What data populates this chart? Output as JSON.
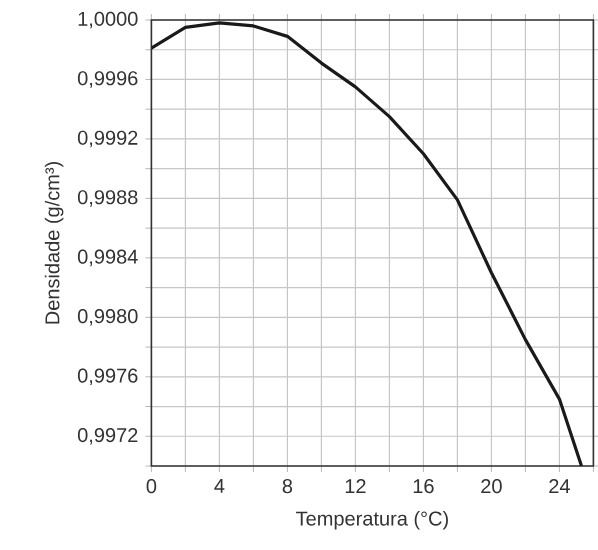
{
  "chart_data": {
    "type": "line",
    "xlabel": "Temperatura (°C)",
    "ylabel": "Densidade (g/cm³)",
    "x": [
      0,
      2,
      4,
      6,
      8,
      10,
      12,
      14,
      16,
      18,
      20,
      22,
      24,
      25.3
    ],
    "series": [
      {
        "color": "#1a1a1a",
        "values": [
          0.99981,
          0.99995,
          0.99998,
          0.99996,
          0.99989,
          0.99971,
          0.99955,
          0.99935,
          0.9991,
          0.99879,
          0.9983,
          0.99785,
          0.99745,
          0.997
        ]
      }
    ],
    "xlim": [
      0,
      26
    ],
    "ylim": [
      0.997,
      1.0
    ],
    "xticks": [
      0,
      {
        "value": 2,
        "label": null
      },
      4,
      {
        "value": 6,
        "label": null
      },
      8,
      {
        "value": 10,
        "label": null
      },
      12,
      {
        "value": 14,
        "label": null
      },
      16,
      {
        "value": 18,
        "label": null
      },
      20,
      {
        "value": 22,
        "label": null
      },
      24,
      {
        "value": 26,
        "label": null
      }
    ],
    "yticks": [
      {
        "value": 0.997,
        "label": null
      },
      {
        "value": 0.9972,
        "label": "0,9972"
      },
      {
        "value": 0.9974,
        "label": null
      },
      {
        "value": 0.9976,
        "label": "0,9976"
      },
      {
        "value": 0.9978,
        "label": null
      },
      {
        "value": 0.998,
        "label": "0,9980"
      },
      {
        "value": 0.9982,
        "label": null
      },
      {
        "value": 0.9984,
        "label": "0,9984"
      },
      {
        "value": 0.9986,
        "label": null
      },
      {
        "value": 0.9988,
        "label": "0,9988"
      },
      {
        "value": 0.999,
        "label": null
      },
      {
        "value": 0.9992,
        "label": "0,9992"
      },
      {
        "value": 0.9994,
        "label": null
      },
      {
        "value": 0.9996,
        "label": "0,9996"
      },
      {
        "value": 0.9998,
        "label": null
      },
      {
        "value": 1.0,
        "label": "1,0000"
      }
    ],
    "grid": true,
    "marker": "none",
    "line_style": "solid"
  }
}
